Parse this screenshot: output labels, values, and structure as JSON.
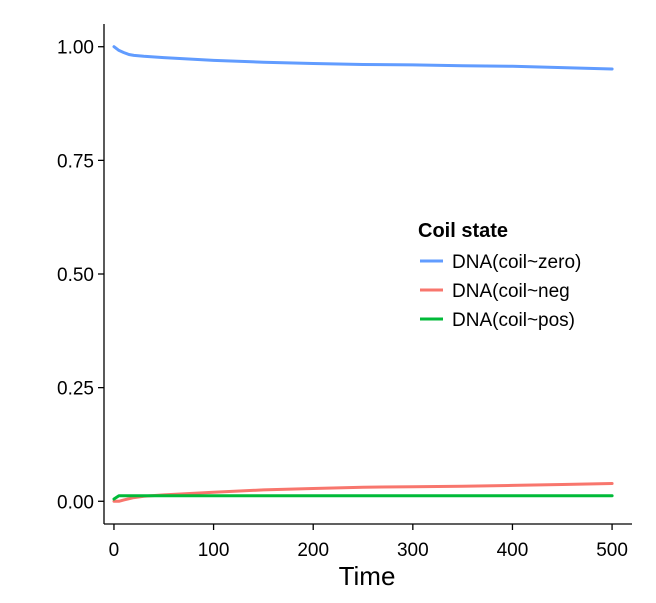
{
  "chart_data": {
    "type": "line",
    "xlabel": "Time",
    "ylabel": "",
    "xlim": [
      -10,
      520
    ],
    "ylim": [
      -0.05,
      1.05
    ],
    "xticks": [
      0,
      100,
      200,
      300,
      400,
      500
    ],
    "yticks": [
      0.0,
      0.25,
      0.5,
      0.75,
      1.0
    ],
    "xtick_labels": [
      "0",
      "100",
      "200",
      "300",
      "400",
      "500"
    ],
    "ytick_labels": [
      "0.00",
      "0.25",
      "0.50",
      "0.75",
      "1.00"
    ],
    "grid": false,
    "legend": {
      "title": "Coil state",
      "placement": "right-center"
    },
    "series": [
      {
        "name": "DNA(coil~zero)",
        "color": "#619CFF",
        "x": [
          0,
          5,
          10,
          15,
          20,
          30,
          50,
          75,
          100,
          150,
          200,
          250,
          300,
          350,
          400,
          450,
          500
        ],
        "y": [
          1.0,
          0.992,
          0.987,
          0.983,
          0.981,
          0.979,
          0.976,
          0.973,
          0.97,
          0.966,
          0.963,
          0.961,
          0.96,
          0.958,
          0.957,
          0.954,
          0.951
        ]
      },
      {
        "name": "DNA(coil~neg",
        "color": "#F8766D",
        "x": [
          0,
          5,
          10,
          20,
          30,
          50,
          100,
          150,
          200,
          250,
          300,
          350,
          400,
          450,
          500
        ],
        "y": [
          0.0,
          0.0,
          0.003,
          0.008,
          0.011,
          0.014,
          0.02,
          0.025,
          0.028,
          0.031,
          0.032,
          0.033,
          0.035,
          0.037,
          0.039
        ]
      },
      {
        "name": "DNA(coil~pos)",
        "color": "#00BA38",
        "x": [
          0,
          5,
          10,
          50,
          100,
          200,
          300,
          400,
          500
        ],
        "y": [
          0.005,
          0.012,
          0.012,
          0.012,
          0.012,
          0.012,
          0.012,
          0.012,
          0.012
        ]
      }
    ]
  }
}
